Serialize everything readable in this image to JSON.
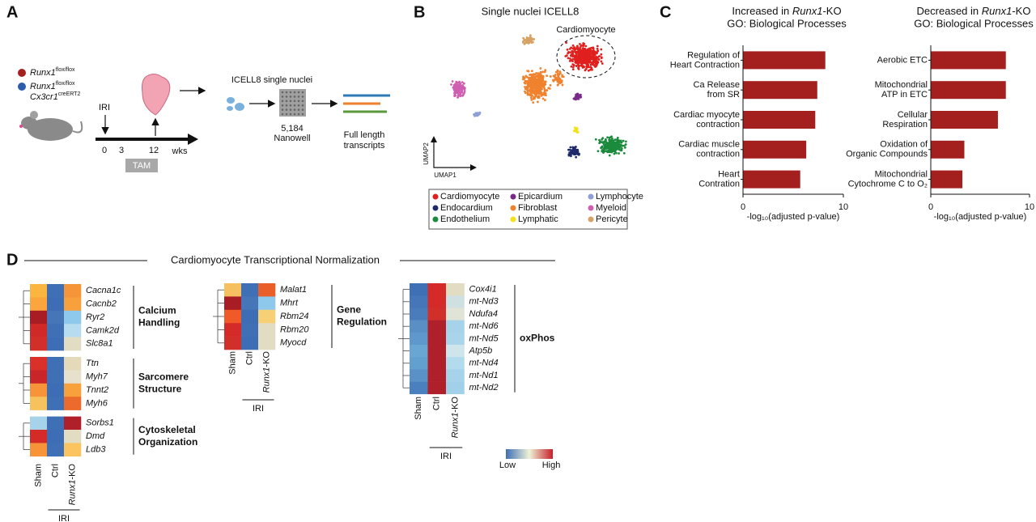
{
  "panel_a": {
    "letter": "A",
    "genotypes": [
      {
        "lines": [
          [
            "Runx1",
            "flox/flox"
          ]
        ],
        "color": "#a3201f"
      },
      {
        "lines": [
          [
            "Runx1",
            "flox/flox"
          ],
          [
            "Cx3cr1",
            "creERT2"
          ]
        ],
        "color": "#2a5caa"
      }
    ],
    "injury": "IRI",
    "timeline": [
      "0",
      "3",
      "12"
    ],
    "time_unit": "wks",
    "treatment": "TAM",
    "platform": "ICELL8 single nuclei",
    "wells": [
      "5,184",
      "Nanowell"
    ],
    "output": [
      "Full length",
      "transcripts"
    ]
  },
  "panel_b": {
    "letter": "B",
    "title": "Single nuclei ICELL8",
    "annotation": "Cardiomyocyte",
    "x_axis": "UMAP1",
    "y_axis": "UMAP2",
    "legend": [
      {
        "name": "Cardiomyocyte",
        "color": "#e0201e"
      },
      {
        "name": "Endocardium",
        "color": "#1f2a6b"
      },
      {
        "name": "Endothelium",
        "color": "#1b8a3c"
      },
      {
        "name": "Epicardium",
        "color": "#7a2a88"
      },
      {
        "name": "Fibroblast",
        "color": "#f0822e"
      },
      {
        "name": "Lymphatic",
        "color": "#f2e21a"
      },
      {
        "name": "Lymphocyte",
        "color": "#8e9fd6"
      },
      {
        "name": "Myeloid",
        "color": "#cf5fb0"
      },
      {
        "name": "Pericyte",
        "color": "#d6a266"
      }
    ]
  },
  "panel_c_letter": "C",
  "chart_data": [
    {
      "type": "bar",
      "orientation": "horizontal",
      "title": [
        "Increased in ",
        "Runx1",
        "-KO"
      ],
      "subtitle": "GO: Biological Processes",
      "categories": [
        [
          "Regulation of",
          "Heart Contraction"
        ],
        [
          "Ca Release",
          "from SR"
        ],
        [
          "Cardiac myocyte",
          "contraction"
        ],
        [
          "Cardiac muscle",
          "contraction"
        ],
        [
          "Heart",
          "Contration"
        ]
      ],
      "values": [
        8.2,
        7.4,
        7.2,
        6.3,
        5.7
      ],
      "color": "#a3201f",
      "xlim": [
        0,
        10
      ],
      "xticks": [
        0,
        10
      ],
      "xlabel": "-log₁₀(adjusted p-value)"
    },
    {
      "type": "bar",
      "orientation": "horizontal",
      "title": [
        "Decreased in ",
        "Runx1",
        "-KO"
      ],
      "subtitle": "GO: Biological Processes",
      "categories": [
        [
          "Aerobic ETC"
        ],
        [
          "Mitochondrial",
          "ATP in ETC"
        ],
        [
          "Cellular",
          "Respiration"
        ],
        [
          "Oxidation of",
          "Organic Compounds"
        ],
        [
          "Mitochondrial",
          "Cytochrome C to O₂"
        ]
      ],
      "values": [
        7.6,
        7.6,
        6.8,
        3.4,
        3.2
      ],
      "color": "#a3201f",
      "xlim": [
        0,
        10
      ],
      "xticks": [
        0,
        10
      ],
      "xlabel": "-log₁₀(adjusted p-value)"
    }
  ],
  "panel_d": {
    "letter": "D",
    "title": "Cardiomyocyte Transcriptional Normalization",
    "columns": [
      "Sham",
      "Ctrl"
    ],
    "ko_column": [
      "Runx1",
      "-KO"
    ],
    "condition": "IRI",
    "scale": [
      "Low",
      "High"
    ],
    "heatmaps": [
      {
        "blocks": [
          {
            "label": [
              "Calcium",
              "Handling"
            ],
            "rows": [
              {
                "gene": "Cacna1c",
                "colors": [
                  "#fbb640",
                  "#3f6fb5",
                  "#f59438"
                ]
              },
              {
                "gene": "Cacnb2",
                "colors": [
                  "#fba53e",
                  "#3d6db4",
                  "#f7a03c"
                ]
              },
              {
                "gene": "Ryr2",
                "colors": [
                  "#a81c24",
                  "#4676b8",
                  "#8ec8ea"
                ]
              },
              {
                "gene": "Camk2d",
                "colors": [
                  "#cf2a27",
                  "#3f6fb5",
                  "#b7dcef"
                ]
              },
              {
                "gene": "Slc8a1",
                "colors": [
                  "#d1302a",
                  "#3d6db4",
                  "#e2dcc2"
                ]
              }
            ]
          },
          {
            "label": [
              "Sarcomere",
              "Structure"
            ],
            "rows": [
              {
                "gene": "Ttn",
                "colors": [
                  "#d9302a",
                  "#3f6fb5",
                  "#e4d9b8"
                ]
              },
              {
                "gene": "Myh7",
                "colors": [
                  "#c9262a",
                  "#3f6fb5",
                  "#e6e0cc"
                ]
              },
              {
                "gene": "Tnnt2",
                "colors": [
                  "#f59438",
                  "#3d6db4",
                  "#f7a03c"
                ]
              },
              {
                "gene": "Myh6",
                "colors": [
                  "#f5c25e",
                  "#3f6fb5",
                  "#ec6a2c"
                ]
              }
            ]
          },
          {
            "label": [
              "Cytoskeletal",
              "Organization"
            ],
            "rows": [
              {
                "gene": "Sorbs1",
                "colors": [
                  "#a7d3ea",
                  "#3f6fb5",
                  "#b0202a"
                ]
              },
              {
                "gene": "Dmd",
                "colors": [
                  "#d42b28",
                  "#3d6db4",
                  "#e2dcc2"
                ]
              },
              {
                "gene": "Ldb3",
                "colors": [
                  "#f59438",
                  "#3f6fb5",
                  "#fbc460"
                ]
              }
            ]
          }
        ]
      },
      {
        "blocks": [
          {
            "label": [
              "Gene",
              "Regulation"
            ],
            "rows": [
              {
                "gene": "Malat1",
                "colors": [
                  "#f6c060",
                  "#3f6fb5",
                  "#ea5e2a"
                ]
              },
              {
                "gene": "Mhrt",
                "colors": [
                  "#a81c24",
                  "#4676b8",
                  "#8ec8ea"
                ]
              },
              {
                "gene": "Rbm24",
                "colors": [
                  "#ef5a28",
                  "#3d6db4",
                  "#f7cf74"
                ]
              },
              {
                "gene": "Rbm20",
                "colors": [
                  "#d42b28",
                  "#3f6fb5",
                  "#e2dcc2"
                ]
              },
              {
                "gene": "Myocd",
                "colors": [
                  "#d1302a",
                  "#3d6db4",
                  "#e2dcc2"
                ]
              }
            ]
          }
        ]
      },
      {
        "blocks": [
          {
            "label": [
              "oxPhos"
            ],
            "rows": [
              {
                "gene": "Cox4i1",
                "colors": [
                  "#3f6fb5",
                  "#d42b28",
                  "#e2dcc2"
                ]
              },
              {
                "gene": "mt-Nd3",
                "colors": [
                  "#4676b8",
                  "#d42b28",
                  "#cfe0e2"
                ]
              },
              {
                "gene": "Ndufa4",
                "colors": [
                  "#4a7cbb",
                  "#d1302a",
                  "#dfe4d6"
                ]
              },
              {
                "gene": "mt-Nd6",
                "colors": [
                  "#5a8fc6",
                  "#b0202a",
                  "#a7d3ea"
                ]
              },
              {
                "gene": "mt-Nd5",
                "colors": [
                  "#5e98cc",
                  "#b0202a",
                  "#a9d4ea"
                ]
              },
              {
                "gene": "Atp5b",
                "colors": [
                  "#69a6d4",
                  "#b0202a",
                  "#cfe5ec"
                ]
              },
              {
                "gene": "mt-Nd4",
                "colors": [
                  "#62a0d0",
                  "#b0202a",
                  "#b3dbee"
                ]
              },
              {
                "gene": "mt-Nd1",
                "colors": [
                  "#5a92c8",
                  "#b0202a",
                  "#a7d3ea"
                ]
              },
              {
                "gene": "mt-Nd2",
                "colors": [
                  "#4a80be",
                  "#b0202a",
                  "#a3d0e9"
                ]
              }
            ]
          }
        ]
      }
    ]
  }
}
